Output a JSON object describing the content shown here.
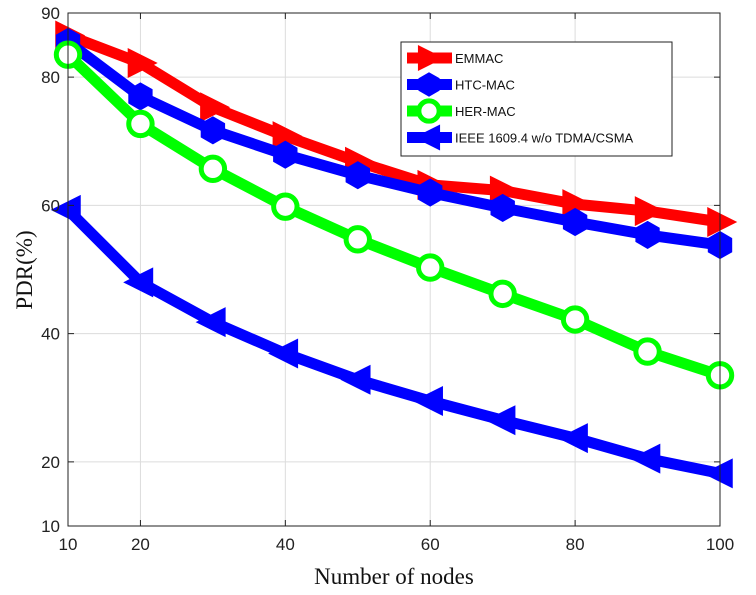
{
  "chart_data": {
    "type": "line",
    "title": "",
    "xlabel": "Number of nodes",
    "ylabel": "PDR(%)",
    "xlim": [
      10,
      100
    ],
    "ylim": [
      10,
      90
    ],
    "xticks": [
      10,
      20,
      40,
      60,
      80,
      100
    ],
    "yticks": [
      10,
      20,
      40,
      60,
      80,
      90
    ],
    "grid": true,
    "legend_position": "top-right",
    "x": [
      10,
      20,
      30,
      40,
      50,
      60,
      70,
      80,
      90,
      100
    ],
    "series": [
      {
        "name": "EMMAC",
        "color": "#ff0000",
        "marker": "triangle-right",
        "values": [
          86.5,
          82.2,
          75.3,
          70.8,
          66.8,
          63.2,
          62.3,
          60.2,
          59.1,
          57.4
        ]
      },
      {
        "name": "HTC-MAC",
        "color": "#0000ff",
        "marker": "hexagon",
        "values": [
          85.5,
          77.0,
          71.7,
          67.9,
          64.7,
          62.0,
          59.6,
          57.4,
          55.4,
          53.8
        ]
      },
      {
        "name": "HER-MAC",
        "color": "#00ff00",
        "marker": "circle",
        "values": [
          83.5,
          72.7,
          65.7,
          59.8,
          54.7,
          50.3,
          46.2,
          42.2,
          37.2,
          33.5
        ]
      },
      {
        "name": "IEEE 1609.4 w/o TDMA/CSMA",
        "color": "#0000ff",
        "marker": "triangle-left",
        "values": [
          59.3,
          48.0,
          41.8,
          36.9,
          32.8,
          29.5,
          26.5,
          23.7,
          20.5,
          18.2
        ]
      }
    ]
  }
}
